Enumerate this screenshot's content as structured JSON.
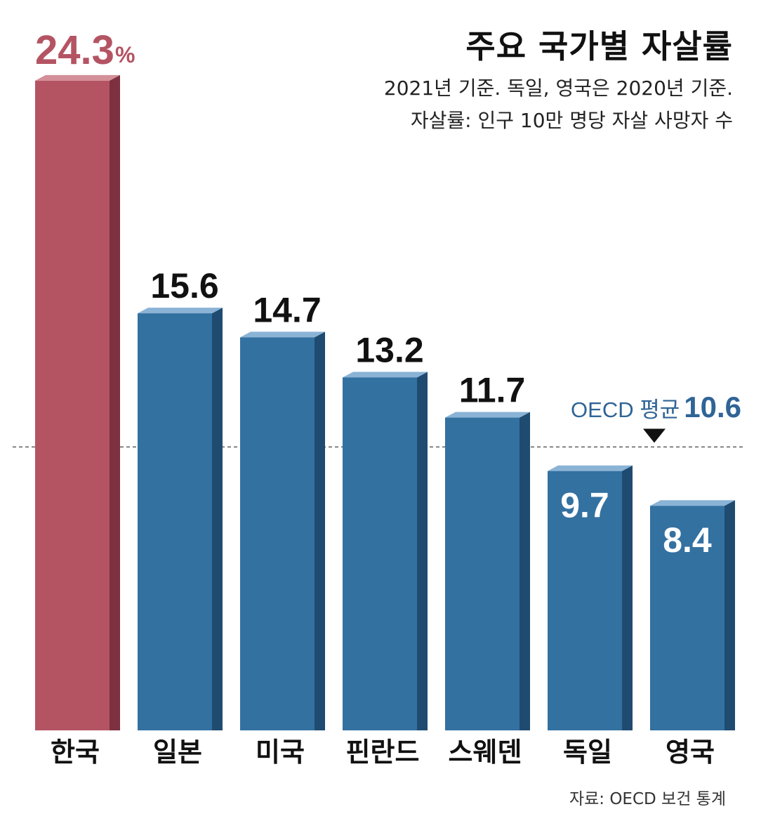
{
  "title": "주요 국가별 자살률",
  "subtitle_line1": "2021년 기준. 독일, 영국은 2020년 기준.",
  "subtitle_line2": "자살률: 인구 10만 명당 자살 사망자 수",
  "source": "자료: OECD 보건 통계",
  "oecd_average": {
    "label": "OECD 평균",
    "value": "10.6"
  },
  "highlight_unit": "%",
  "colors": {
    "highlight_front": "#b45463",
    "highlight_side": "#7d3140",
    "highlight_top": "#d48f99",
    "bar_front": "#3371a1",
    "bar_side": "#1f4b71",
    "bar_top": "#8ab3d6",
    "accent_text": "#b45463",
    "avg_text": "#2f6496"
  },
  "chart_data": {
    "type": "bar",
    "categories": [
      "한국",
      "일본",
      "미국",
      "핀란드",
      "스웨덴",
      "독일",
      "영국"
    ],
    "values": [
      24.3,
      15.6,
      14.7,
      13.2,
      11.7,
      9.7,
      8.4
    ],
    "value_labels": [
      "24.3",
      "15.6",
      "14.7",
      "13.2",
      "11.7",
      "9.7",
      "8.4"
    ],
    "highlight_index": 0,
    "reference_line": 10.6,
    "title": "주요 국가별 자살률",
    "xlabel": "",
    "ylabel": "",
    "ylim": [
      0,
      25
    ]
  }
}
